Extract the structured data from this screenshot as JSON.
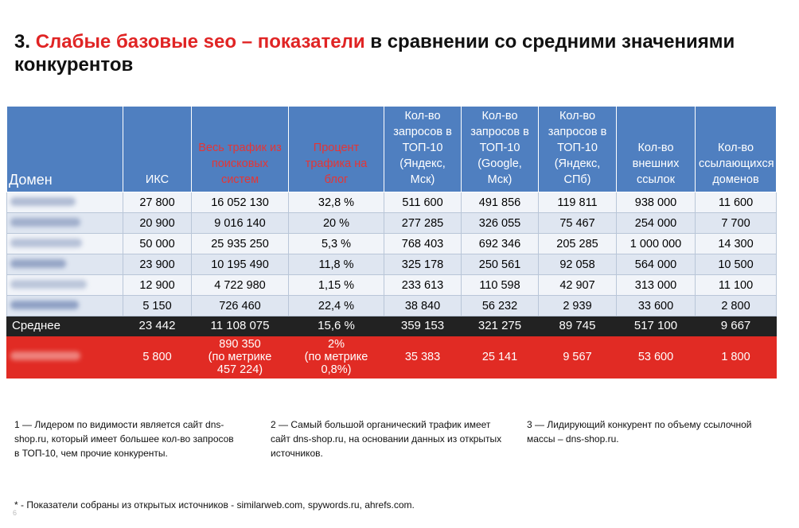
{
  "title": {
    "number": "3.",
    "highlight": "Слабые базовые seo – показатели",
    "rest": "в сравнении со средними значениями конкурентов"
  },
  "table": {
    "headers": [
      "Домен",
      "ИКС",
      "Весь трафик из поисковых систем",
      "Процент трафика на блог",
      "Кол-во запросов в ТОП-10 (Яндекс, Мск)",
      "Кол-во запросов в ТОП-10 (Google, Мск)",
      "Кол-во запросов в ТОП-10 (Яндекс, СПб)",
      "Кол-во внешних ссылок",
      "Кол-во ссылающихся доменов"
    ],
    "rows": [
      {
        "domain": "",
        "values": [
          "27 800",
          "16 052 130",
          "32,8 %",
          "511 600",
          "491 856",
          "119 811",
          "938 000",
          "11 600"
        ]
      },
      {
        "domain": "",
        "values": [
          "20 900",
          "9 016 140",
          "20 %",
          "277 285",
          "326 055",
          "75 467",
          "254 000",
          "7 700"
        ]
      },
      {
        "domain": "",
        "values": [
          "50 000",
          "25 935 250",
          "5,3 %",
          "768 403",
          "692 346",
          "205 285",
          "1 000 000",
          "14 300"
        ]
      },
      {
        "domain": "",
        "values": [
          "23 900",
          "10 195 490",
          "11,8 %",
          "325 178",
          "250 561",
          "92 058",
          "564 000",
          "10 500"
        ]
      },
      {
        "domain": "",
        "values": [
          "12 900",
          "4 722 980",
          "1,15 %",
          "233 613",
          "110 598",
          "42 907",
          "313 000",
          "11 100"
        ]
      },
      {
        "domain": "",
        "values": [
          "5 150",
          "726 460",
          "22,4 %",
          "38 840",
          "56 232",
          "2 939",
          "33 600",
          "2 800"
        ]
      }
    ],
    "average": {
      "label": "Среднее",
      "values": [
        "23 442",
        "11 108 075",
        "15,6 %",
        "359 153",
        "321 275",
        "89 745",
        "517 100",
        "9 667"
      ]
    },
    "own": {
      "domain": "",
      "values": [
        "5 800",
        "890 350\n(по метрике\n457 224)",
        "2%\n(по метрике\n0,8%)",
        "35 383",
        "25 141",
        "9 567",
        "53 600",
        "1 800"
      ]
    }
  },
  "notes": [
    "1 — Лидером по видимости является сайт dns-shop.ru, который имеет большее кол-во запросов в ТОП-10, чем прочие конкуренты.",
    "2 — Самый большой органический трафик имеет сайт dns-shop.ru, на основании данных из открытых источников.",
    "3 — Лидирующий конкурент по объему ссылочной массы – dns-shop.ru."
  ],
  "footnote": "* - Показатели собраны из открытых источников - similarweb.com, spywords.ru, ahrefs.com.",
  "page_number": "6",
  "colors": {
    "accent_red": "#e02424",
    "header_blue": "#4f7fc0",
    "row_alt_1": "#dfe6f1",
    "row_alt_2": "#f1f4f9",
    "average_row": "#222222",
    "own_row": "#e12b24"
  }
}
